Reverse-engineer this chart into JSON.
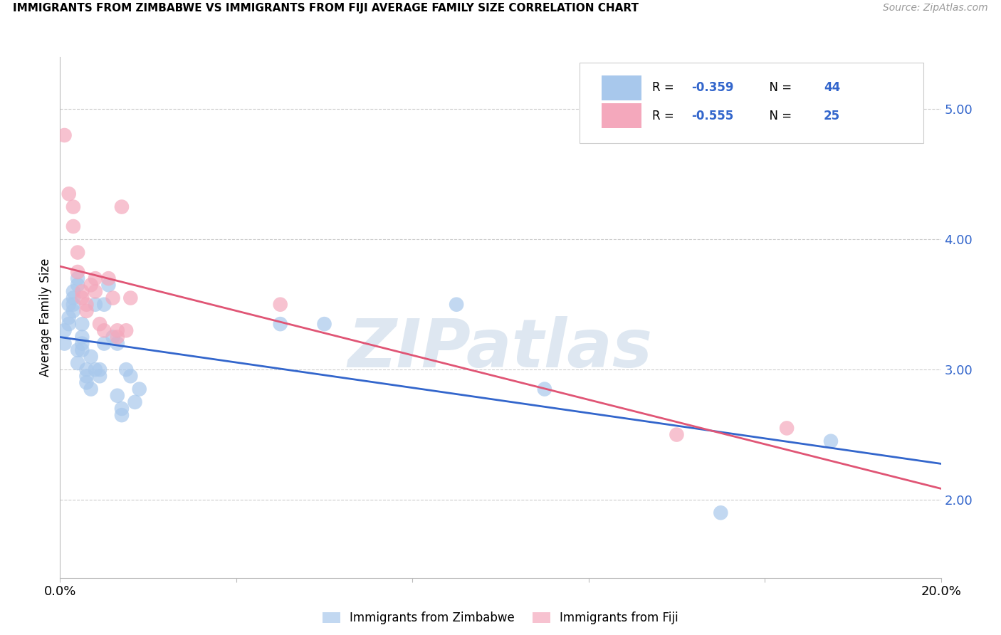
{
  "title": "IMMIGRANTS FROM ZIMBABWE VS IMMIGRANTS FROM FIJI AVERAGE FAMILY SIZE CORRELATION CHART",
  "source": "Source: ZipAtlas.com",
  "ylabel": "Average Family Size",
  "right_yticks": [
    2.0,
    3.0,
    4.0,
    5.0
  ],
  "right_ytick_labels": [
    "2.00",
    "3.00",
    "4.00",
    "5.00"
  ],
  "xmin": 0.0,
  "xmax": 0.2,
  "ymin": 1.4,
  "ymax": 5.4,
  "zimbabwe_color": "#A8C8EC",
  "fiji_color": "#F4A8BC",
  "zimbabwe_line_color": "#3366CC",
  "fiji_line_color": "#E05575",
  "zimbabwe_R": "-0.359",
  "zimbabwe_N": "44",
  "fiji_R": "-0.555",
  "fiji_N": "25",
  "watermark": "ZIPatlas",
  "watermark_color": "#C8D8E8",
  "label_color": "#3366CC",
  "zimbabwe_x": [
    0.001,
    0.001,
    0.002,
    0.002,
    0.002,
    0.003,
    0.003,
    0.003,
    0.003,
    0.004,
    0.004,
    0.004,
    0.004,
    0.005,
    0.005,
    0.005,
    0.005,
    0.006,
    0.006,
    0.006,
    0.007,
    0.007,
    0.008,
    0.008,
    0.009,
    0.009,
    0.01,
    0.01,
    0.011,
    0.012,
    0.013,
    0.013,
    0.014,
    0.014,
    0.015,
    0.016,
    0.017,
    0.018,
    0.05,
    0.06,
    0.09,
    0.11,
    0.15,
    0.175
  ],
  "zimbabwe_y": [
    3.3,
    3.2,
    3.5,
    3.4,
    3.35,
    3.6,
    3.55,
    3.5,
    3.45,
    3.7,
    3.65,
    3.15,
    3.05,
    3.35,
    3.25,
    3.2,
    3.15,
    3.0,
    2.95,
    2.9,
    2.85,
    3.1,
    3.5,
    3.0,
    3.0,
    2.95,
    3.5,
    3.2,
    3.65,
    3.25,
    3.2,
    2.8,
    2.7,
    2.65,
    3.0,
    2.95,
    2.75,
    2.85,
    3.35,
    3.35,
    3.5,
    2.85,
    1.9,
    2.45
  ],
  "fiji_x": [
    0.001,
    0.002,
    0.003,
    0.003,
    0.004,
    0.004,
    0.005,
    0.005,
    0.006,
    0.006,
    0.007,
    0.008,
    0.008,
    0.009,
    0.01,
    0.011,
    0.012,
    0.013,
    0.013,
    0.014,
    0.015,
    0.016,
    0.05,
    0.14,
    0.165
  ],
  "fiji_y": [
    4.8,
    4.35,
    4.25,
    4.1,
    3.9,
    3.75,
    3.6,
    3.55,
    3.5,
    3.45,
    3.65,
    3.7,
    3.6,
    3.35,
    3.3,
    3.7,
    3.55,
    3.3,
    3.25,
    4.25,
    3.3,
    3.55,
    3.5,
    2.5,
    2.55
  ]
}
